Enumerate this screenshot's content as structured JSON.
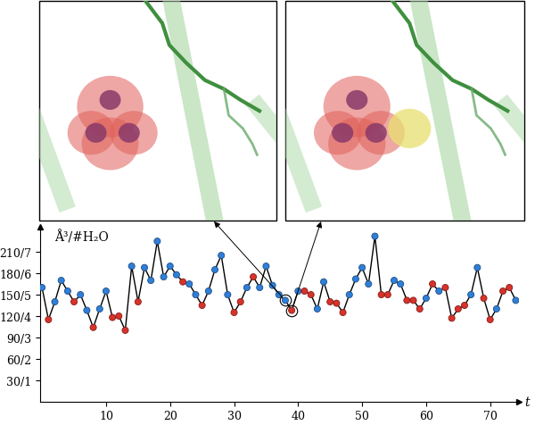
{
  "chart_data": {
    "type": "line",
    "x": [
      0,
      1,
      2,
      3,
      4,
      5,
      6,
      7,
      8,
      9,
      10,
      11,
      12,
      13,
      14,
      15,
      16,
      17,
      18,
      19,
      20,
      21,
      22,
      23,
      24,
      25,
      26,
      27,
      28,
      29,
      30,
      31,
      32,
      33,
      34,
      35,
      36,
      37,
      38,
      39,
      40,
      41,
      42,
      43,
      44,
      45,
      46,
      47,
      48,
      49,
      50,
      51,
      52,
      53,
      54,
      55,
      56,
      57,
      58,
      59,
      60,
      61,
      62,
      63,
      64,
      65,
      66,
      67,
      68,
      69,
      70,
      71,
      72,
      73,
      74
    ],
    "values": [
      160,
      115,
      140,
      170,
      155,
      140,
      150,
      128,
      104,
      130,
      155,
      118,
      120,
      100,
      190,
      140,
      188,
      170,
      225,
      175,
      190,
      178,
      168,
      165,
      150,
      135,
      155,
      185,
      205,
      150,
      125,
      140,
      160,
      175,
      160,
      190,
      163,
      150,
      142,
      128,
      155,
      155,
      150,
      130,
      168,
      140,
      138,
      125,
      150,
      172,
      188,
      165,
      232,
      150,
      150,
      170,
      165,
      142,
      142,
      130,
      145,
      165,
      155,
      160,
      117,
      130,
      135,
      150,
      188,
      145,
      115,
      130,
      155,
      160,
      142
    ],
    "colors": [
      "#2f7fd8",
      "#d8322a",
      "#2f7fd8",
      "#2f7fd8",
      "#2f7fd8",
      "#d8322a",
      "#2f7fd8",
      "#2f7fd8",
      "#d8322a",
      "#2f7fd8",
      "#2f7fd8",
      "#d8322a",
      "#d8322a",
      "#d8322a",
      "#2f7fd8",
      "#d8322a",
      "#2f7fd8",
      "#2f7fd8",
      "#2f7fd8",
      "#2f7fd8",
      "#2f7fd8",
      "#2f7fd8",
      "#d8322a",
      "#2f7fd8",
      "#2f7fd8",
      "#d8322a",
      "#2f7fd8",
      "#2f7fd8",
      "#2f7fd8",
      "#2f7fd8",
      "#d8322a",
      "#d8322a",
      "#2f7fd8",
      "#d8322a",
      "#2f7fd8",
      "#2f7fd8",
      "#2f7fd8",
      "#2f7fd8",
      "#2f7fd8",
      "#d8322a",
      "#2f7fd8",
      "#d8322a",
      "#d8322a",
      "#2f7fd8",
      "#2f7fd8",
      "#d8322a",
      "#d8322a",
      "#d8322a",
      "#2f7fd8",
      "#2f7fd8",
      "#2f7fd8",
      "#2f7fd8",
      "#2f7fd8",
      "#d8322a",
      "#d8322a",
      "#2f7fd8",
      "#2f7fd8",
      "#d8322a",
      "#d8322a",
      "#d8322a",
      "#2f7fd8",
      "#d8322a",
      "#2f7fd8",
      "#d8322a",
      "#d8322a",
      "#d8322a",
      "#d8322a",
      "#2f7fd8",
      "#2f7fd8",
      "#d8322a",
      "#d8322a",
      "#2f7fd8",
      "#d8322a",
      "#d8322a",
      "#2f7fd8"
    ],
    "color": "#000000",
    "marker": "o",
    "xlabel": "t",
    "ylabel": "Å³/#H₂O",
    "xlim": [
      -0.3,
      74.5
    ],
    "ylim": [
      0,
      245
    ],
    "xticks": [
      10,
      20,
      30,
      40,
      50,
      60,
      70
    ],
    "yticks": [
      {
        "value": 30,
        "label": "30/1"
      },
      {
        "value": 60,
        "label": "60/2"
      },
      {
        "value": 90,
        "label": "90/3"
      },
      {
        "value": 120,
        "label": "120/4"
      },
      {
        "value": 150,
        "label": "150/5"
      },
      {
        "value": 180,
        "label": "180/6"
      },
      {
        "value": 210,
        "label": "210/7"
      }
    ]
  }
}
